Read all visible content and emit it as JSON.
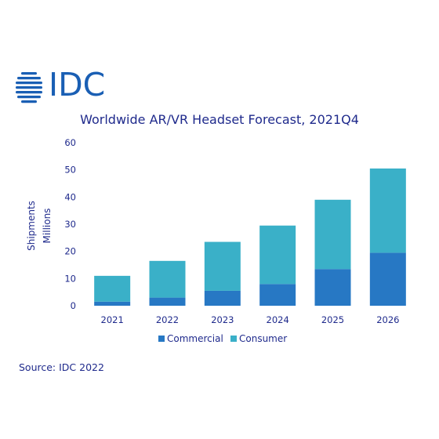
{
  "brand": {
    "logo_text": "IDC",
    "logo_color": "#1a5fb4"
  },
  "footer": {
    "source": "Source: IDC 2022"
  },
  "chart_data": {
    "type": "bar",
    "stacked": true,
    "title": "Worldwide AR/VR Headset Forecast, 2021Q4",
    "ylabel_lines": [
      "Shipments",
      "Millions"
    ],
    "xlabel": "",
    "ylim": [
      0,
      60
    ],
    "yticks": [
      0,
      10,
      20,
      30,
      40,
      50,
      60
    ],
    "grid": false,
    "legend_position": "bottom",
    "categories": [
      "2021",
      "2022",
      "2023",
      "2024",
      "2025",
      "2026"
    ],
    "series": [
      {
        "name": "Commercial",
        "color": "#2778c4",
        "values": [
          1.5,
          3.0,
          5.5,
          8.0,
          13.5,
          19.5
        ]
      },
      {
        "name": "Consumer",
        "color": "#3ab0c8",
        "values": [
          9.5,
          13.5,
          18.0,
          21.5,
          25.5,
          31.0
        ]
      }
    ]
  }
}
